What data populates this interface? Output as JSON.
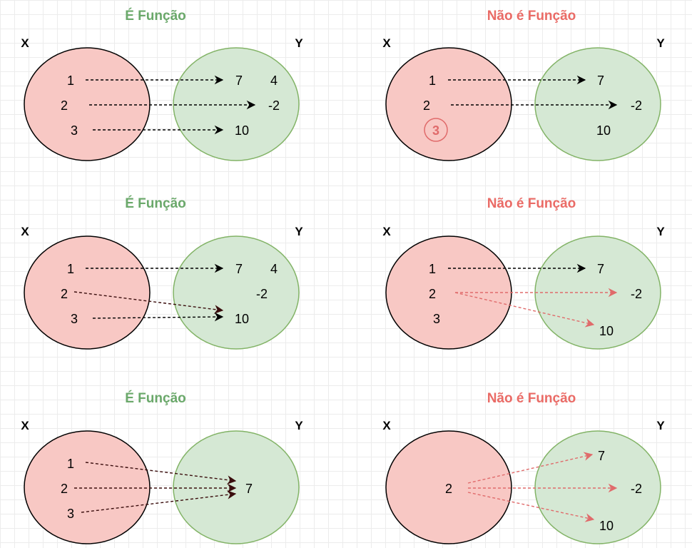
{
  "colors": {
    "func_title": "#6aa86a",
    "nonfunc_title": "#ea6b66",
    "domain_fill": "#f8c8c4",
    "domain_stroke": "#000000",
    "codomain_fill": "#d5e8d4",
    "codomain_stroke": "#82b366",
    "highlight": "#e06b6b"
  },
  "set_labels": {
    "x": "X",
    "y": "Y"
  },
  "panels": [
    {
      "title": "É Função",
      "kind": "function",
      "domain": [
        "1",
        "2",
        "3"
      ],
      "codomain": [
        "7",
        "4",
        "-2",
        "10"
      ],
      "arrows": [
        [
          "1",
          "7"
        ],
        [
          "2",
          "-2"
        ],
        [
          "3",
          "10"
        ]
      ]
    },
    {
      "title": "Não é Função",
      "kind": "non-function",
      "domain": [
        "1",
        "2",
        "3"
      ],
      "codomain": [
        "7",
        "-2",
        "10"
      ],
      "highlighted_element": "3",
      "arrows": [
        [
          "1",
          "7"
        ],
        [
          "2",
          "-2"
        ]
      ]
    },
    {
      "title": "É Função",
      "kind": "function",
      "domain": [
        "1",
        "2",
        "3"
      ],
      "codomain": [
        "7",
        "4",
        "-2",
        "10"
      ],
      "arrows": [
        [
          "1",
          "7"
        ],
        [
          "2",
          "10"
        ],
        [
          "3",
          "10"
        ]
      ]
    },
    {
      "title": "Não é Função",
      "kind": "non-function",
      "domain": [
        "1",
        "2",
        "3"
      ],
      "codomain": [
        "7",
        "-2",
        "10"
      ],
      "arrows": [
        [
          "1",
          "7"
        ],
        [
          "2",
          "-2"
        ],
        [
          "2",
          "10"
        ]
      ]
    },
    {
      "title": "É Função",
      "kind": "function",
      "domain": [
        "1",
        "2",
        "3"
      ],
      "codomain": [
        "7"
      ],
      "arrows": [
        [
          "1",
          "7"
        ],
        [
          "2",
          "7"
        ],
        [
          "3",
          "7"
        ]
      ]
    },
    {
      "title": "Não é Função",
      "kind": "non-function",
      "domain": [
        "2"
      ],
      "codomain": [
        "7",
        "-2",
        "10"
      ],
      "arrows": [
        [
          "2",
          "7"
        ],
        [
          "2",
          "-2"
        ],
        [
          "2",
          "10"
        ]
      ]
    }
  ]
}
